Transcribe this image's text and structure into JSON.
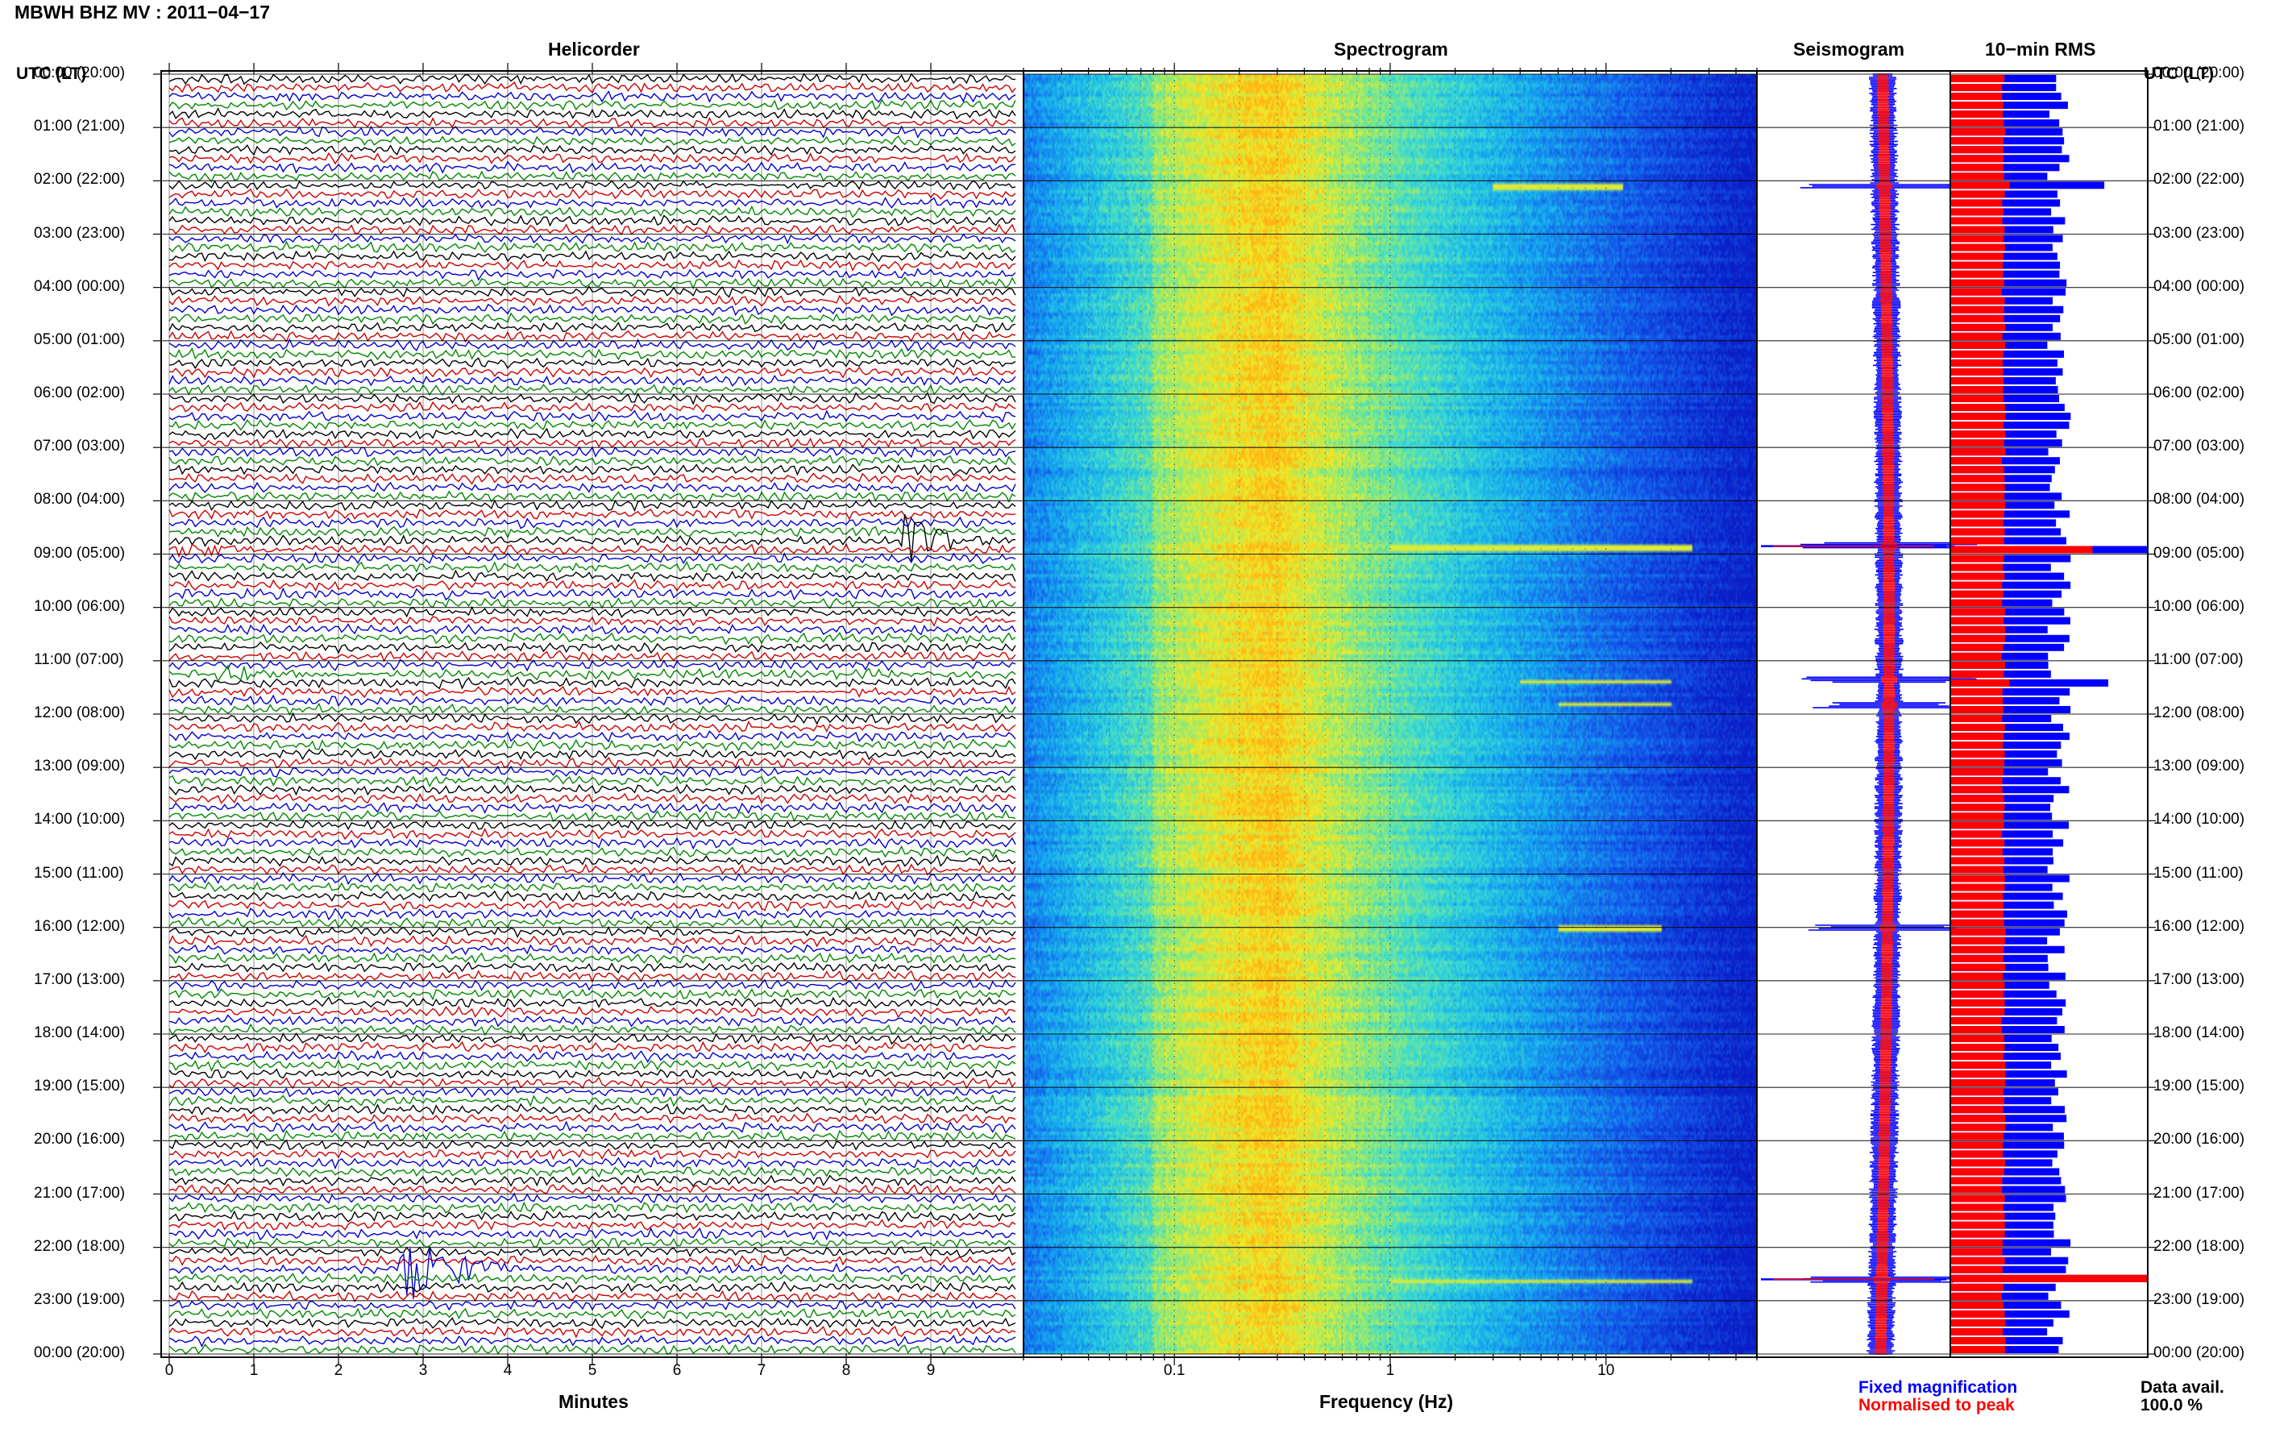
{
  "page": {
    "title": "MBWH BHZ MV : 2011−04−17",
    "utc_header_left": "UTC (LT)",
    "utc_header_right": "UTC (LT)",
    "data_avail_label": "Data avail.",
    "data_avail_value": "100.0 %",
    "legend_fixed": "Fixed magnification",
    "legend_normalised": "Normalised to peak"
  },
  "panels": {
    "helicorder": "Helicorder",
    "spectrogram": "Spectrogram",
    "seismogram": "Seismogram",
    "rms": "10−min RMS"
  },
  "time_labels": [
    "00:00 (20:00)",
    "01:00 (21:00)",
    "02:00 (22:00)",
    "03:00 (23:00)",
    "04:00 (00:00)",
    "05:00 (01:00)",
    "06:00 (02:00)",
    "07:00 (03:00)",
    "08:00 (04:00)",
    "09:00 (05:00)",
    "10:00 (06:00)",
    "11:00 (07:00)",
    "12:00 (08:00)",
    "13:00 (09:00)",
    "14:00 (10:00)",
    "15:00 (11:00)",
    "16:00 (12:00)",
    "17:00 (13:00)",
    "18:00 (14:00)",
    "19:00 (15:00)",
    "20:00 (16:00)",
    "21:00 (17:00)",
    "22:00 (18:00)",
    "23:00 (19:00)",
    "00:00 (20:00)"
  ],
  "colors": {
    "trace_cycle": [
      "#000000",
      "#cc0000",
      "#0000cc",
      "#008800"
    ],
    "fixed": "#0000ff",
    "normalised": "#ff0000",
    "spec_low": "#0a2fd8",
    "spec_high": "#ffd500"
  },
  "chart_data": [
    {
      "type": "line",
      "panel": "helicorder",
      "xlabel": "Minutes",
      "x_ticks": [
        "0",
        "1",
        "2",
        "3",
        "4",
        "5",
        "6",
        "7",
        "8",
        "9"
      ],
      "xlim": [
        0,
        10
      ],
      "lines_per_hour": 6,
      "events": [
        {
          "hour": 2.0,
          "minute_start": 6.1,
          "duration": 1.2,
          "amp": 0.6,
          "color": "#000000"
        },
        {
          "hour": 8.67,
          "minute_start": 8.6,
          "duration": 1.4,
          "amp": 3.5,
          "color": "#000000"
        },
        {
          "hour": 8.83,
          "minute_start": 0.0,
          "duration": 1.6,
          "amp": 1.6,
          "color": "#cc0000"
        },
        {
          "hour": 11.17,
          "minute_start": 0.5,
          "duration": 2.0,
          "amp": 1.4,
          "color": "#000000"
        },
        {
          "hour": 11.5,
          "minute_start": 5.0,
          "duration": 3.0,
          "amp": 0.7,
          "color": "#0000cc"
        },
        {
          "hour": 16.0,
          "minute_start": 5.5,
          "duration": 2.0,
          "amp": 0.8,
          "color": "#008800"
        },
        {
          "hour": 22.0,
          "minute_start": 9.2,
          "duration": 0.6,
          "amp": 1.2,
          "color": "#000000"
        },
        {
          "hour": 22.33,
          "minute_start": 2.7,
          "duration": 1.8,
          "amp": 4.5,
          "color": "#008800"
        }
      ]
    },
    {
      "type": "heatmap",
      "panel": "spectrogram",
      "xlabel": "Frequency (Hz)",
      "x_scale": "log",
      "xlim": [
        0.02,
        50
      ],
      "x_tick_labels": [
        "0.1",
        "1",
        "10"
      ],
      "x_tick_values": [
        0.1,
        1,
        10
      ],
      "peak_frequency_hz": 0.3,
      "transient_lines": [
        {
          "hour": 2.1,
          "fmin": 3,
          "fmax": 12
        },
        {
          "hour": 8.85,
          "fmin": 1,
          "fmax": 25
        },
        {
          "hour": 11.35,
          "fmin": 4,
          "fmax": 20
        },
        {
          "hour": 11.8,
          "fmin": 6,
          "fmax": 20
        },
        {
          "hour": 16.0,
          "fmin": 6,
          "fmax": 18
        },
        {
          "hour": 22.6,
          "fmin": 1,
          "fmax": 25
        }
      ]
    },
    {
      "type": "line",
      "panel": "seismogram",
      "series": [
        {
          "name": "Fixed magnification",
          "color": "#0000ff"
        },
        {
          "name": "Normalised to peak",
          "color": "#ff0000"
        }
      ],
      "spikes_hour": [
        2.1,
        8.85,
        11.35,
        11.85,
        16.0,
        22.6
      ]
    },
    {
      "type": "bar",
      "panel": "rms",
      "orientation": "horizontal",
      "bins_per_hour": 6,
      "baseline_fixed": 0.55,
      "baseline_normalised": 0.27,
      "spikes": [
        {
          "hour": 2.0,
          "fixed": 0.78,
          "normalised": 0.3
        },
        {
          "hour": 8.83,
          "fixed": 1.0,
          "normalised": 0.72
        },
        {
          "hour": 11.33,
          "fixed": 0.8,
          "normalised": 0.3
        },
        {
          "hour": 22.5,
          "fixed": 1.0,
          "normalised": 1.0
        }
      ]
    }
  ]
}
